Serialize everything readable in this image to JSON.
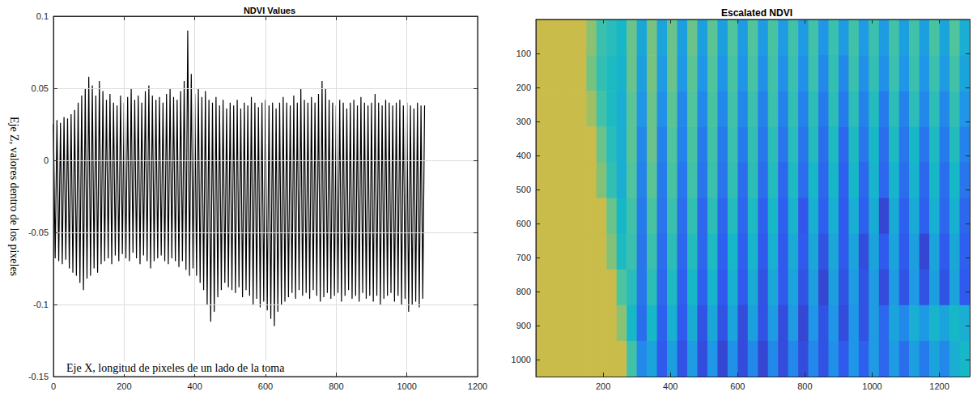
{
  "chart_data": [
    {
      "type": "line",
      "title": "NDVI Values",
      "x_label": "Eje X, longitud de pixeles de un lado de la toma",
      "y_label": "Eje Z, valores dentro de los pixeles",
      "color": "#000000",
      "x": [
        0,
        5,
        10,
        15,
        20,
        25,
        30,
        35,
        40,
        45,
        50,
        55,
        60,
        65,
        70,
        75,
        80,
        85,
        90,
        95,
        100,
        105,
        110,
        115,
        120,
        125,
        130,
        135,
        140,
        145,
        150,
        155,
        160,
        165,
        170,
        175,
        180,
        185,
        190,
        195,
        200,
        205,
        210,
        215,
        220,
        225,
        230,
        235,
        240,
        245,
        250,
        255,
        260,
        265,
        270,
        275,
        280,
        285,
        290,
        295,
        300,
        305,
        310,
        315,
        320,
        325,
        330,
        335,
        340,
        345,
        350,
        355,
        360,
        365,
        370,
        375,
        380,
        385,
        390,
        395,
        400,
        405,
        410,
        415,
        420,
        425,
        430,
        435,
        440,
        445,
        450,
        455,
        460,
        465,
        470,
        475,
        480,
        485,
        490,
        495,
        500,
        505,
        510,
        515,
        520,
        525,
        530,
        535,
        540,
        545,
        550,
        555,
        560,
        565,
        570,
        575,
        580,
        585,
        590,
        595,
        600,
        605,
        610,
        615,
        620,
        625,
        630,
        635,
        640,
        645,
        650,
        655,
        660,
        665,
        670,
        675,
        680,
        685,
        690,
        695,
        700,
        705,
        710,
        715,
        720,
        725,
        730,
        735,
        740,
        745,
        750,
        755,
        760,
        765,
        770,
        775,
        780,
        785,
        790,
        795,
        800,
        805,
        810,
        815,
        820,
        825,
        830,
        835,
        840,
        845,
        850,
        855,
        860,
        865,
        870,
        875,
        880,
        885,
        890,
        895,
        900,
        905,
        910,
        915,
        920,
        925,
        930,
        935,
        940,
        945,
        950,
        955,
        960,
        965,
        970,
        975,
        980,
        985,
        990,
        995,
        1000,
        1005,
        1010,
        1015,
        1020,
        1025,
        1030,
        1035,
        1040,
        1045,
        1050
      ],
      "values": [
        0.025,
        -0.068,
        0.028,
        -0.07,
        0.026,
        -0.072,
        0.03,
        -0.069,
        0.029,
        -0.075,
        0.032,
        -0.078,
        0.035,
        -0.08,
        0.04,
        -0.085,
        0.045,
        -0.09,
        0.05,
        -0.082,
        0.058,
        -0.08,
        0.052,
        -0.075,
        0.045,
        -0.078,
        0.055,
        -0.072,
        0.048,
        -0.07,
        0.042,
        -0.068,
        0.046,
        -0.072,
        0.04,
        -0.066,
        0.038,
        -0.07,
        0.045,
        -0.065,
        0.04,
        -0.068,
        0.044,
        -0.07,
        0.05,
        -0.064,
        0.042,
        -0.068,
        0.045,
        -0.072,
        0.04,
        -0.066,
        0.048,
        -0.07,
        0.052,
        -0.075,
        0.045,
        -0.07,
        0.042,
        -0.068,
        0.044,
        -0.066,
        0.04,
        -0.07,
        0.046,
        -0.072,
        0.05,
        -0.068,
        0.044,
        -0.07,
        0.042,
        -0.074,
        0.048,
        -0.07,
        0.055,
        -0.076,
        0.09,
        -0.08,
        0.06,
        -0.075,
        0.046,
        -0.08,
        0.05,
        -0.085,
        0.044,
        -0.09,
        0.048,
        -0.1,
        0.042,
        -0.112,
        0.04,
        -0.105,
        0.044,
        -0.095,
        0.038,
        -0.09,
        0.042,
        -0.085,
        0.036,
        -0.088,
        0.04,
        -0.09,
        0.038,
        -0.092,
        0.042,
        -0.088,
        0.036,
        -0.095,
        0.04,
        -0.09,
        0.038,
        -0.094,
        0.044,
        -0.1,
        0.04,
        -0.096,
        0.037,
        -0.102,
        0.04,
        -0.098,
        0.042,
        -0.104,
        0.038,
        -0.11,
        0.04,
        -0.115,
        0.036,
        -0.105,
        0.04,
        -0.1,
        0.044,
        -0.098,
        0.04,
        -0.095,
        0.038,
        -0.092,
        0.045,
        -0.096,
        0.04,
        -0.09,
        0.05,
        -0.094,
        0.042,
        -0.092,
        0.04,
        -0.096,
        0.044,
        -0.09,
        0.04,
        -0.094,
        0.046,
        -0.098,
        0.055,
        -0.095,
        0.05,
        -0.092,
        0.042,
        -0.096,
        0.04,
        -0.094,
        0.038,
        -0.092,
        0.042,
        -0.098,
        0.04,
        -0.094,
        0.036,
        -0.09,
        0.04,
        -0.096,
        0.042,
        -0.094,
        0.038,
        -0.098,
        0.044,
        -0.092,
        0.04,
        -0.096,
        0.038,
        -0.094,
        0.04,
        -0.098,
        0.046,
        -0.094,
        0.04,
        -0.1,
        0.038,
        -0.096,
        0.042,
        -0.094,
        0.04,
        -0.092,
        0.038,
        -0.098,
        0.04,
        -0.094,
        0.042,
        -0.1,
        0.038,
        -0.096,
        0.04,
        -0.105,
        0.038,
        -0.1,
        0.036,
        -0.098,
        0.04,
        -0.102,
        0.038,
        -0.096,
        0.038
      ],
      "xlim": [
        0,
        1200
      ],
      "xticks": [
        0,
        200,
        400,
        600,
        800,
        1000,
        1200
      ],
      "ylim": [
        -0.15,
        0.1
      ],
      "yticks": [
        -0.15,
        -0.1,
        -0.05,
        0,
        0.05,
        0.1
      ],
      "grid": true
    },
    {
      "type": "heatmap",
      "title": "Escalated NDVI",
      "x_edges": [
        0,
        30,
        60,
        90,
        120,
        150,
        180,
        210,
        240,
        270,
        300,
        330,
        360,
        390,
        420,
        450,
        480,
        510,
        540,
        570,
        600,
        630,
        660,
        690,
        720,
        750,
        780,
        810,
        840,
        870,
        900,
        930,
        960,
        990,
        1020,
        1050,
        1080,
        1110,
        1140,
        1170,
        1200,
        1230,
        1260,
        1290
      ],
      "y_edges": [
        0,
        105,
        210,
        315,
        420,
        525,
        630,
        735,
        840,
        945,
        1050
      ],
      "cells": [
        [
          0.85,
          0.85,
          0.85,
          0.85,
          0.85,
          0.75,
          0.6,
          0.55,
          0.5,
          0.7,
          0.42,
          0.72,
          0.4,
          0.7,
          0.38,
          0.7,
          0.38,
          0.68,
          0.38,
          0.66,
          0.36,
          0.66,
          0.36,
          0.64,
          0.36,
          0.62,
          0.36,
          0.62,
          0.34,
          0.6,
          0.36,
          0.62,
          0.36,
          0.6,
          0.36,
          0.62,
          0.38,
          0.62,
          0.38,
          0.64,
          0.4,
          0.66,
          0.45
        ],
        [
          0.85,
          0.85,
          0.85,
          0.85,
          0.85,
          0.72,
          0.58,
          0.52,
          0.48,
          0.7,
          0.38,
          0.72,
          0.36,
          0.7,
          0.35,
          0.68,
          0.34,
          0.66,
          0.33,
          0.64,
          0.33,
          0.64,
          0.32,
          0.62,
          0.32,
          0.6,
          0.32,
          0.6,
          0.3,
          0.58,
          0.3,
          0.6,
          0.32,
          0.58,
          0.32,
          0.6,
          0.34,
          0.6,
          0.34,
          0.6,
          0.36,
          0.62,
          0.4
        ],
        [
          0.85,
          0.85,
          0.85,
          0.85,
          0.85,
          0.78,
          0.62,
          0.52,
          0.45,
          0.68,
          0.34,
          0.7,
          0.32,
          0.68,
          0.3,
          0.66,
          0.3,
          0.64,
          0.3,
          0.62,
          0.3,
          0.6,
          0.28,
          0.6,
          0.28,
          0.58,
          0.28,
          0.56,
          0.26,
          0.56,
          0.26,
          0.56,
          0.28,
          0.54,
          0.26,
          0.56,
          0.28,
          0.56,
          0.3,
          0.56,
          0.3,
          0.58,
          0.34
        ],
        [
          0.85,
          0.85,
          0.85,
          0.85,
          0.85,
          0.85,
          0.7,
          0.55,
          0.45,
          0.68,
          0.3,
          0.7,
          0.28,
          0.66,
          0.28,
          0.64,
          0.26,
          0.62,
          0.26,
          0.6,
          0.26,
          0.58,
          0.25,
          0.56,
          0.24,
          0.55,
          0.24,
          0.54,
          0.22,
          0.52,
          0.2,
          0.52,
          0.24,
          0.5,
          0.22,
          0.52,
          0.24,
          0.5,
          0.24,
          0.52,
          0.26,
          0.54,
          0.28
        ],
        [
          0.85,
          0.85,
          0.85,
          0.85,
          0.85,
          0.85,
          0.74,
          0.58,
          0.45,
          0.66,
          0.28,
          0.68,
          0.26,
          0.64,
          0.25,
          0.62,
          0.24,
          0.6,
          0.24,
          0.58,
          0.22,
          0.56,
          0.22,
          0.54,
          0.2,
          0.52,
          0.22,
          0.5,
          0.2,
          0.5,
          0.18,
          0.5,
          0.2,
          0.48,
          0.2,
          0.48,
          0.22,
          0.48,
          0.2,
          0.5,
          0.22,
          0.5,
          0.24
        ],
        [
          0.85,
          0.85,
          0.85,
          0.85,
          0.85,
          0.85,
          0.85,
          0.7,
          0.5,
          0.62,
          0.26,
          0.64,
          0.24,
          0.6,
          0.22,
          0.58,
          0.2,
          0.56,
          0.2,
          0.54,
          0.2,
          0.52,
          0.18,
          0.5,
          0.18,
          0.48,
          0.15,
          0.46,
          0.18,
          0.46,
          0.16,
          0.45,
          0.18,
          0.44,
          0.1,
          0.44,
          0.18,
          0.44,
          0.18,
          0.46,
          0.2,
          0.46,
          0.2
        ],
        [
          0.85,
          0.85,
          0.85,
          0.85,
          0.85,
          0.85,
          0.85,
          0.74,
          0.52,
          0.6,
          0.24,
          0.6,
          0.22,
          0.56,
          0.2,
          0.54,
          0.2,
          0.52,
          0.18,
          0.5,
          0.18,
          0.48,
          0.16,
          0.46,
          0.16,
          0.44,
          0.16,
          0.42,
          0.14,
          0.42,
          0.16,
          0.4,
          0.12,
          0.4,
          0.16,
          0.4,
          0.16,
          0.38,
          0.1,
          0.4,
          0.16,
          0.42,
          0.18
        ],
        [
          0.85,
          0.85,
          0.85,
          0.85,
          0.85,
          0.85,
          0.85,
          0.85,
          0.65,
          0.55,
          0.24,
          0.56,
          0.2,
          0.52,
          0.18,
          0.5,
          0.18,
          0.48,
          0.16,
          0.46,
          0.16,
          0.44,
          0.14,
          0.42,
          0.16,
          0.4,
          0.14,
          0.38,
          0.1,
          0.38,
          0.14,
          0.36,
          0.14,
          0.36,
          0.12,
          0.36,
          0.14,
          0.36,
          0.14,
          0.38,
          0.14,
          0.4,
          0.16
        ],
        [
          0.85,
          0.85,
          0.85,
          0.85,
          0.85,
          0.85,
          0.85,
          0.85,
          0.75,
          0.5,
          0.22,
          0.5,
          0.18,
          0.46,
          0.16,
          0.44,
          0.14,
          0.42,
          0.14,
          0.4,
          0.12,
          0.38,
          0.14,
          0.36,
          0.12,
          0.36,
          0.1,
          0.34,
          0.14,
          0.34,
          0.12,
          0.34,
          0.14,
          0.36,
          0.2,
          0.4,
          0.3,
          0.45,
          0.35,
          0.48,
          0.4,
          0.5,
          0.45
        ],
        [
          0.85,
          0.85,
          0.85,
          0.85,
          0.85,
          0.85,
          0.85,
          0.85,
          0.85,
          0.62,
          0.3,
          0.4,
          0.16,
          0.38,
          0.14,
          0.36,
          0.12,
          0.34,
          0.1,
          0.32,
          0.12,
          0.3,
          0.1,
          0.3,
          0.12,
          0.3,
          0.12,
          0.3,
          0.14,
          0.32,
          0.16,
          0.34,
          0.18,
          0.36,
          0.2,
          0.36,
          0.22,
          0.38,
          0.26,
          0.4,
          0.3,
          0.45,
          0.5
        ]
      ],
      "color_range": [
        0,
        1
      ],
      "xlim": [
        0,
        1290
      ],
      "xticks": [
        200,
        400,
        600,
        800,
        1000,
        1200
      ],
      "ylim": [
        0,
        1050
      ],
      "yticks": [
        100,
        200,
        300,
        400,
        500,
        600,
        700,
        800,
        900,
        1000
      ],
      "grid": false
    }
  ]
}
